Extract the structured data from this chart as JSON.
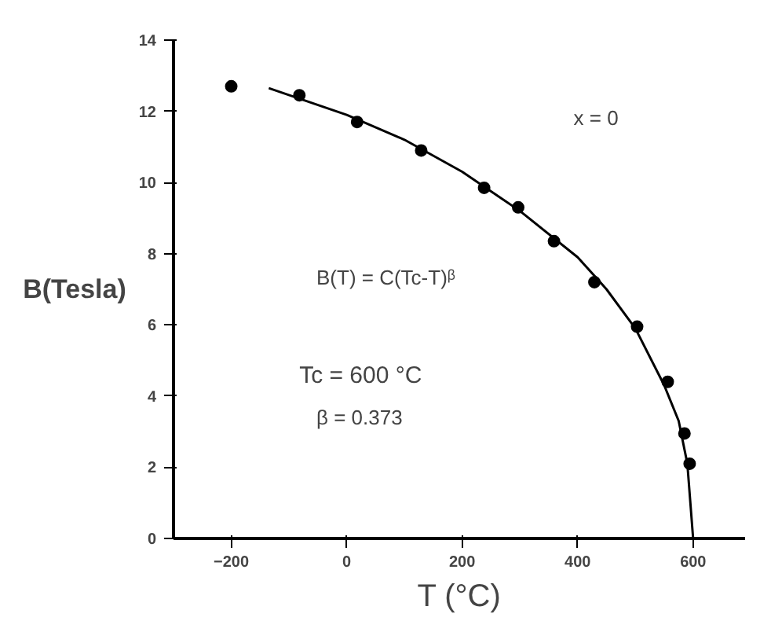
{
  "chart_data": {
    "type": "scatter",
    "xlabel": "T (°C)",
    "ylabel": "B(Tesla)",
    "xlim": [
      -300,
      690
    ],
    "ylim": [
      0,
      14
    ],
    "xticks": [
      -200,
      0,
      200,
      400,
      600
    ],
    "yticks": [
      0,
      2,
      4,
      6,
      8,
      10,
      12,
      14
    ],
    "grid": false,
    "series": [
      {
        "marker": "circle",
        "color": "#000000",
        "x": [
          -200,
          -82,
          18,
          129,
          238,
          297,
          359,
          429,
          503,
          556,
          585,
          594
        ],
        "values": [
          12.7,
          12.45,
          11.7,
          10.9,
          9.85,
          9.3,
          8.35,
          7.2,
          5.95,
          4.4,
          2.95,
          2.1
        ]
      },
      {
        "type": "line",
        "marker": "none",
        "color": "#000000",
        "x": [
          -135,
          0,
          100,
          200,
          300,
          400,
          450,
          500,
          550,
          575,
          590,
          600
        ],
        "values": [
          12.65,
          11.9,
          11.2,
          10.3,
          9.2,
          7.9,
          7.0,
          5.9,
          4.3,
          3.3,
          2.1,
          0
        ]
      }
    ],
    "annotations": [
      "x = 0",
      "B(T) = C(Tc-T)ᵝ",
      "Tc = 600 °C",
      "β = 0.373"
    ]
  }
}
